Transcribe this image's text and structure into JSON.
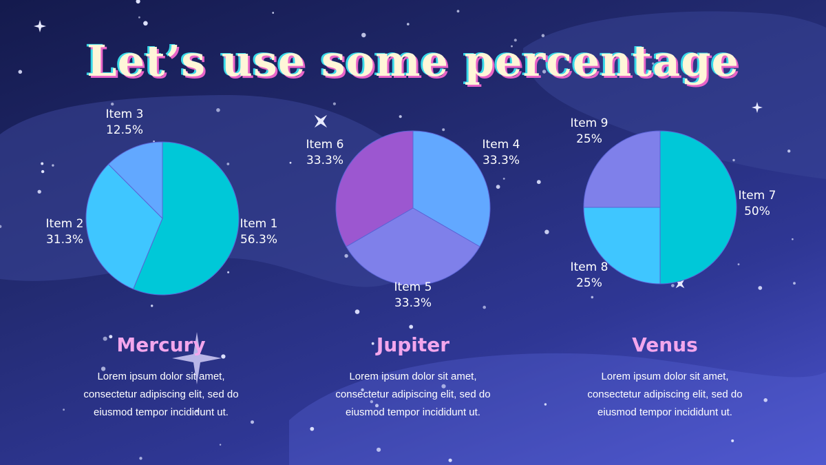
{
  "slide": {
    "title": "Let’s use some percentage",
    "colors": {
      "title_fill": "#fff6d8",
      "title_shadow_pink": "#e864c7",
      "title_shadow_cyan": "#38d8e8",
      "card_title": "#f3a6ec"
    }
  },
  "cards": [
    {
      "heading": "Mercury",
      "text_lines": [
        "Lorem ipsum dolor sit amet,",
        "consectetur adipiscing elit, sed do",
        "eiusmod tempor incididunt ut."
      ]
    },
    {
      "heading": "Jupiter",
      "text_lines": [
        "Lorem ipsum dolor sit amet,",
        "consectetur adipiscing elit, sed do",
        "eiusmod tempor incididunt ut."
      ]
    },
    {
      "heading": "Venus",
      "text_lines": [
        "Lorem ipsum dolor sit amet,",
        "consectetur adipiscing elit, sed do",
        "eiusmod tempor incididunt ut."
      ]
    }
  ],
  "chart_data": [
    {
      "type": "pie",
      "title": "",
      "slices": [
        {
          "label": "Item 1",
          "value": 56.3,
          "display": "56.3%",
          "color": "#00c8d8"
        },
        {
          "label": "Item 2",
          "value": 31.3,
          "display": "31.3%",
          "color": "#3fc6ff"
        },
        {
          "label": "Item 3",
          "value": 12.5,
          "display": "12.5%",
          "color": "#62a8ff"
        }
      ]
    },
    {
      "type": "pie",
      "title": "",
      "slices": [
        {
          "label": "Item 4",
          "value": 33.3,
          "display": "33.3%",
          "color": "#62a8ff"
        },
        {
          "label": "Item 5",
          "value": 33.3,
          "display": "33.3%",
          "color": "#7f80ea"
        },
        {
          "label": "Item 6",
          "value": 33.3,
          "display": "33.3%",
          "color": "#9c57d0"
        }
      ]
    },
    {
      "type": "pie",
      "title": "",
      "slices": [
        {
          "label": "Item 7",
          "value": 50,
          "display": "50%",
          "color": "#00c8d8"
        },
        {
          "label": "Item 8",
          "value": 25,
          "display": "25%",
          "color": "#3fc6ff"
        },
        {
          "label": "Item 9",
          "value": 25,
          "display": "25%",
          "color": "#7f80ea"
        }
      ]
    }
  ]
}
